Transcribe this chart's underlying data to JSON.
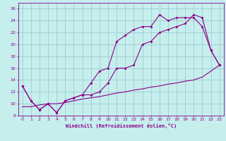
{
  "xlabel": "Windchill (Refroidissement éolien,°C)",
  "background_color": "#c5eeed",
  "grid_color": "#9ecece",
  "line_color": "#8b008b",
  "xlim": [
    -0.5,
    23.5
  ],
  "ylim": [
    8,
    27
  ],
  "yticks": [
    8,
    10,
    12,
    14,
    16,
    18,
    20,
    22,
    24,
    26
  ],
  "xticks": [
    0,
    1,
    2,
    3,
    4,
    5,
    6,
    7,
    8,
    9,
    10,
    11,
    12,
    13,
    14,
    15,
    16,
    17,
    18,
    19,
    20,
    21,
    22,
    23
  ],
  "series1_x": [
    0,
    1,
    2,
    3,
    4,
    5,
    6,
    7,
    8,
    9,
    10,
    11,
    12,
    13,
    14,
    15,
    16,
    17,
    18,
    19,
    20,
    21,
    22,
    23
  ],
  "series1_y": [
    13,
    10.5,
    9.0,
    10.0,
    8.5,
    10.5,
    11.0,
    11.5,
    13.5,
    15.5,
    16.0,
    20.5,
    21.5,
    22.5,
    23.0,
    23.0,
    25.0,
    24.0,
    24.5,
    24.5,
    24.5,
    23.0,
    19.0,
    16.5
  ],
  "series2_x": [
    0,
    1,
    2,
    3,
    4,
    5,
    6,
    7,
    8,
    9,
    10,
    11,
    12,
    13,
    14,
    15,
    16,
    17,
    18,
    19,
    20,
    21,
    22,
    23
  ],
  "series2_y": [
    13,
    10.5,
    9.0,
    10.0,
    8.5,
    10.5,
    11.0,
    11.5,
    11.5,
    12.0,
    13.5,
    16.0,
    16.0,
    16.5,
    20.0,
    20.5,
    22.0,
    22.5,
    23.0,
    23.5,
    25.0,
    24.5,
    19.0,
    16.5
  ],
  "series3_x": [
    0,
    1,
    2,
    3,
    4,
    5,
    6,
    7,
    8,
    9,
    10,
    11,
    12,
    13,
    14,
    15,
    16,
    17,
    18,
    19,
    20,
    21,
    22,
    23
  ],
  "series3_y": [
    9.5,
    9.5,
    9.8,
    10.0,
    10.0,
    10.2,
    10.5,
    10.8,
    11.0,
    11.2,
    11.5,
    11.8,
    12.0,
    12.3,
    12.5,
    12.8,
    13.0,
    13.3,
    13.5,
    13.8,
    14.0,
    14.5,
    15.5,
    16.5
  ]
}
